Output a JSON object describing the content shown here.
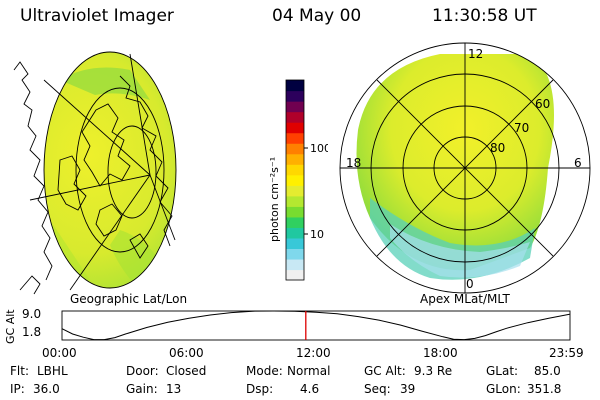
{
  "header": {
    "instrument": "Ultraviolet Imager",
    "date": "04 May 00",
    "time": "11:30:58 UT"
  },
  "left_panel": {
    "caption": "Geographic Lat/Lon"
  },
  "right_panel": {
    "caption": "Apex MLat/MLT",
    "mlt_labels": [
      "12",
      "18",
      "6",
      "0"
    ],
    "mlat_labels": [
      "60",
      "70",
      "80"
    ]
  },
  "colorbar": {
    "label": "photon cm⁻²s⁻¹",
    "ticks": [
      "100",
      "10"
    ],
    "scale": "log",
    "colors": [
      "#f0f0f0",
      "#c8e8f4",
      "#7fd8ec",
      "#38c8d8",
      "#20c8a0",
      "#30d060",
      "#78dc30",
      "#b4e830",
      "#e4ec30",
      "#fff000",
      "#ffd800",
      "#ffb000",
      "#ff8000",
      "#ff4000",
      "#e00000",
      "#b0002a",
      "#700050",
      "#2c005c",
      "#000040"
    ]
  },
  "altitude_plot": {
    "ylabel": "GC Alt",
    "ytick_labels": [
      "9.0",
      "1.8"
    ],
    "xtick_labels": [
      "00:00",
      "06:00",
      "12:00",
      "18:00",
      "23:59"
    ],
    "cursor_color": "#dd0000",
    "cursor_time_hours": 11.516
  },
  "chart_data": {
    "type": "line",
    "title": "",
    "xlabel": "",
    "ylabel": "GC Alt",
    "xlim": [
      0,
      24
    ],
    "ylim": [
      1.8,
      9.0
    ],
    "series": [
      {
        "x": [
          0,
          0.5,
          1.0,
          1.5,
          2.0,
          2.5,
          3.0,
          4.0,
          5.0,
          6.0,
          7.0,
          8.0,
          9.0,
          10.0,
          11.0,
          12.0,
          13.0,
          14.0,
          15.0,
          16.0,
          17.0,
          18.0,
          18.5,
          19.0,
          19.5,
          20.0,
          20.5,
          21.0,
          22.0,
          23.0,
          23.98
        ],
        "values": [
          4.6,
          3.3,
          2.5,
          1.9,
          1.9,
          2.4,
          3.3,
          4.9,
          6.2,
          7.2,
          8.0,
          8.6,
          8.95,
          9.0,
          8.95,
          8.7,
          8.3,
          7.6,
          6.7,
          5.5,
          4.0,
          2.6,
          2.0,
          1.9,
          2.2,
          2.9,
          3.8,
          4.7,
          6.1,
          7.2,
          8.2
        ]
      }
    ]
  },
  "status": {
    "flt_label": "Flt:",
    "flt_value": "LBHL",
    "ip_label": "IP:",
    "ip_value": "36.0",
    "door_label": "Door:",
    "door_value": "Closed",
    "gain_label": "Gain:",
    "gain_value": "13",
    "mode_label": "Mode:",
    "mode_value": "Normal",
    "dsp_label": "Dsp:",
    "dsp_value": "4.6",
    "gcalt_label": "GC Alt:",
    "gcalt_value": "9.3 Re",
    "seq_label": "Seq:",
    "seq_value": "39",
    "glat_label": "GLat:",
    "glat_value": "85.0",
    "glon_label": "GLon:",
    "glon_value": "351.8"
  }
}
